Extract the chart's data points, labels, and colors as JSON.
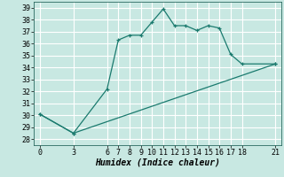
{
  "xlabel": "Humidex (Indice chaleur)",
  "line1_x": [
    0,
    3,
    6,
    7,
    8,
    9,
    10,
    11,
    12,
    13,
    14,
    15,
    16,
    17,
    18,
    21
  ],
  "line1_y": [
    30.1,
    28.5,
    32.2,
    36.3,
    36.7,
    36.7,
    37.8,
    38.9,
    37.5,
    37.5,
    37.1,
    37.5,
    37.3,
    35.1,
    34.3,
    34.3
  ],
  "line2_x": [
    0,
    3,
    21
  ],
  "line2_y": [
    30.1,
    28.5,
    34.3
  ],
  "line_color": "#1a7a6e",
  "bg_color": "#c8e8e2",
  "grid_color": "#ffffff",
  "ylim": [
    27.5,
    39.5
  ],
  "xlim": [
    -0.5,
    21.5
  ],
  "yticks": [
    28,
    29,
    30,
    31,
    32,
    33,
    34,
    35,
    36,
    37,
    38,
    39
  ],
  "xticks": [
    0,
    3,
    6,
    7,
    8,
    9,
    10,
    11,
    12,
    13,
    14,
    15,
    16,
    17,
    18,
    21
  ],
  "xlabel_fontsize": 7,
  "tick_fontsize": 6,
  "marker": "+"
}
